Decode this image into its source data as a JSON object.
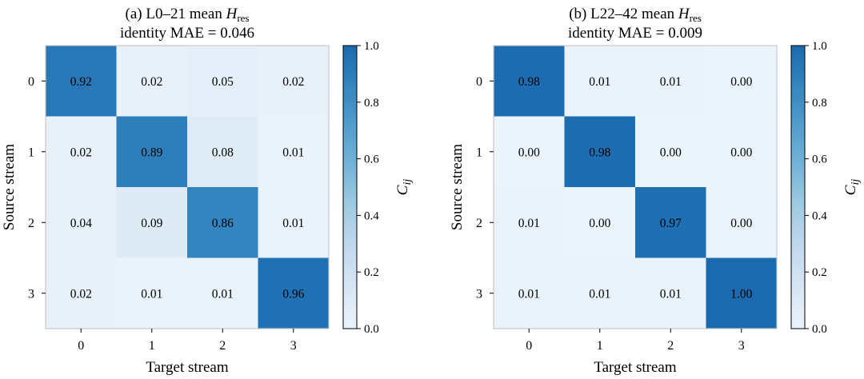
{
  "chart_data": [
    {
      "type": "heatmap",
      "title_line1_prefix": "(a) L0–21 mean ",
      "title_symbol": "H",
      "title_subscript": "res",
      "title_line2": "identity MAE = 0.046",
      "xlabel": "Target stream",
      "ylabel": "Source stream",
      "x_ticks": [
        "0",
        "1",
        "2",
        "3"
      ],
      "y_ticks": [
        "0",
        "1",
        "2",
        "3"
      ],
      "values": [
        [
          0.92,
          0.02,
          0.05,
          0.02
        ],
        [
          0.02,
          0.89,
          0.08,
          0.01
        ],
        [
          0.04,
          0.09,
          0.86,
          0.01
        ],
        [
          0.02,
          0.01,
          0.01,
          0.96
        ]
      ],
      "labels": [
        [
          "0.92",
          "0.02",
          "0.05",
          "0.02"
        ],
        [
          "0.02",
          "0.89",
          "0.08",
          "0.01"
        ],
        [
          "0.04",
          "0.09",
          "0.86",
          "0.01"
        ],
        [
          "0.02",
          "0.01",
          "0.01",
          "0.96"
        ]
      ],
      "colorbar": {
        "label_symbol": "C",
        "label_subscript": "ij",
        "range": [
          0,
          1
        ],
        "ticks": [
          "0.0",
          "0.2",
          "0.4",
          "0.6",
          "0.8",
          "1.0"
        ],
        "colormap": "Blues"
      }
    },
    {
      "type": "heatmap",
      "title_line1_prefix": "(b) L22–42 mean ",
      "title_symbol": "H",
      "title_subscript": "res",
      "title_line2": "identity MAE = 0.009",
      "xlabel": "Target stream",
      "ylabel": "Source stream",
      "x_ticks": [
        "0",
        "1",
        "2",
        "3"
      ],
      "y_ticks": [
        "0",
        "1",
        "2",
        "3"
      ],
      "values": [
        [
          0.98,
          0.01,
          0.01,
          0.0
        ],
        [
          0.0,
          0.98,
          0.0,
          0.0
        ],
        [
          0.01,
          0.0,
          0.97,
          0.0
        ],
        [
          0.01,
          0.01,
          0.01,
          1.0
        ]
      ],
      "labels": [
        [
          "0.98",
          "0.01",
          "0.01",
          "0.00"
        ],
        [
          "0.00",
          "0.98",
          "0.00",
          "0.00"
        ],
        [
          "0.01",
          "0.00",
          "0.97",
          "0.00"
        ],
        [
          "0.01",
          "0.01",
          "0.01",
          "1.00"
        ]
      ],
      "colorbar": {
        "label_symbol": "C",
        "label_subscript": "ij",
        "range": [
          0,
          1
        ],
        "ticks": [
          "0.0",
          "0.2",
          "0.4",
          "0.6",
          "0.8",
          "1.0"
        ],
        "colormap": "Blues"
      }
    }
  ]
}
